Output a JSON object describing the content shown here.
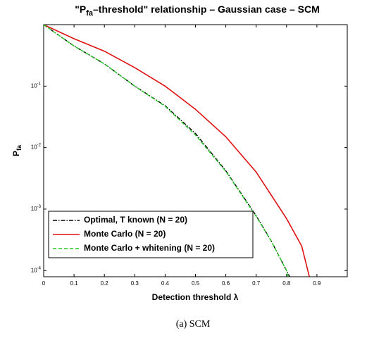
{
  "chart_data": {
    "type": "line",
    "title": {
      "prefix": "\"P",
      "sub": "fa",
      "suffix": "–threshold\" relationship – Gaussian case – SCM"
    },
    "xlabel": "Detection threshold λ",
    "ylabel": {
      "main": "P",
      "sub": "fa"
    },
    "caption": "(a)  SCM",
    "xlim": [
      0,
      1
    ],
    "xticks": [
      0,
      0.1,
      0.2,
      0.3,
      0.4,
      0.5,
      0.6,
      0.7,
      0.8,
      0.9
    ],
    "ylim": [
      7.94e-05,
      1
    ],
    "log_y": true,
    "yticks": [
      {
        "value": 0.1,
        "label": "10^-1"
      },
      {
        "value": 0.01,
        "label": "10^-2"
      },
      {
        "value": 0.001,
        "label": "10^-3"
      },
      {
        "value": 0.0001,
        "label": "10^-4"
      }
    ],
    "legend": "lower left",
    "series": [
      {
        "name": "Optimal, T known (N = 20)",
        "color": "#000000",
        "style": "dashdot",
        "x": [
          0,
          0.1,
          0.2,
          0.3,
          0.4,
          0.5,
          0.6,
          0.7,
          0.75,
          0.8,
          0.81
        ],
        "values": [
          1,
          0.45,
          0.23,
          0.1,
          0.048,
          0.017,
          0.0042,
          0.00078,
          0.0003,
          0.0001,
          8e-05
        ]
      },
      {
        "name": "Monte Carlo (N = 20)",
        "color": "#e01010",
        "style": "solid",
        "x": [
          0,
          0.1,
          0.2,
          0.3,
          0.4,
          0.5,
          0.6,
          0.7,
          0.8,
          0.85,
          0.875
        ],
        "values": [
          1,
          0.59,
          0.37,
          0.2,
          0.1,
          0.042,
          0.015,
          0.004,
          0.0007,
          0.00025,
          8e-05
        ]
      },
      {
        "name": "Monte Carlo + whitening  (N = 20)",
        "color": "#22cc22",
        "style": "dashed",
        "x": [
          0,
          0.1,
          0.2,
          0.3,
          0.4,
          0.5,
          0.6,
          0.7,
          0.75,
          0.8,
          0.805
        ],
        "values": [
          1,
          0.45,
          0.23,
          0.1,
          0.047,
          0.016,
          0.0041,
          0.00076,
          0.0003,
          0.0001,
          8e-05
        ]
      }
    ]
  }
}
